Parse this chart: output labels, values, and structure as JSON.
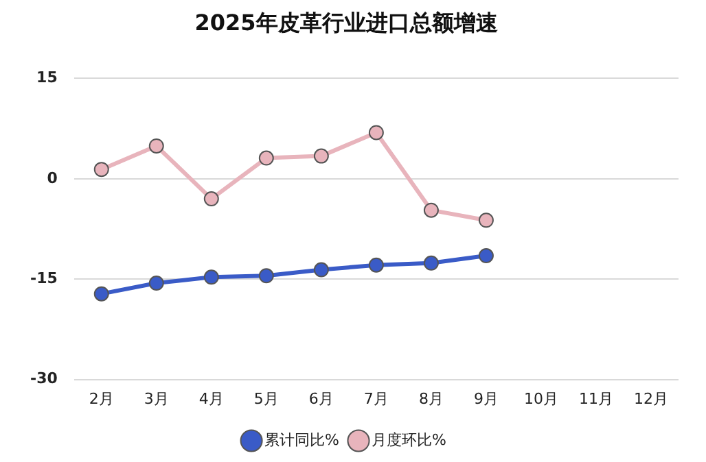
{
  "chart_data": {
    "type": "line",
    "title": "2025年皮革行业进口总额增速",
    "categories": [
      "2月",
      "3月",
      "4月",
      "5月",
      "6月",
      "7月",
      "8月",
      "9月",
      "10月",
      "11月",
      "12月"
    ],
    "series": [
      {
        "name": "累计同比%",
        "color": "#3a5bc7",
        "values": [
          -17.2,
          -15.6,
          -14.7,
          -14.5,
          -13.6,
          -12.9,
          -12.6,
          -11.5,
          null,
          null,
          null
        ]
      },
      {
        "name": "月度环比%",
        "color": "#e8b4bc",
        "values": [
          1.4,
          4.9,
          -3.0,
          3.1,
          3.4,
          6.9,
          -4.7,
          -6.2,
          null,
          null,
          null
        ]
      }
    ],
    "ylim": [
      -30,
      15
    ],
    "yticks": [
      -30,
      -15,
      0,
      15
    ],
    "grid": "y",
    "legend": "bottom",
    "marker": "circle"
  }
}
